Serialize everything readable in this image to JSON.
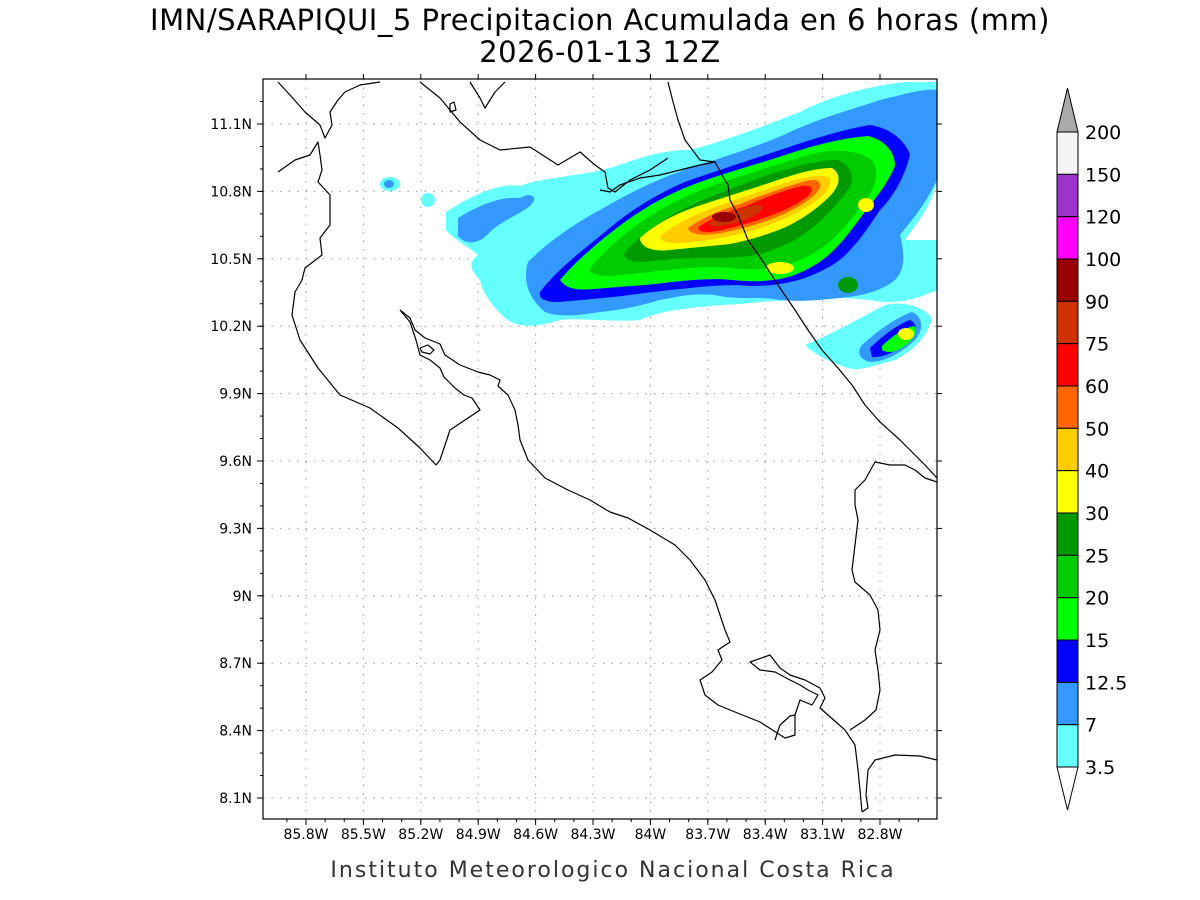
{
  "title": {
    "line1": "IMN/SARAPIQUI_5 Precipitacion Acumulada en 6 horas (mm)",
    "line2": "2026-01-13 12Z"
  },
  "footer": "Instituto Meteorologico Nacional Costa Rica",
  "map": {
    "lon_range": [
      -86.05,
      -82.55
    ],
    "lat_range": [
      8.0,
      11.3
    ],
    "lon_ticks": [
      "85.8W",
      "85.5W",
      "85.2W",
      "84.9W",
      "84.6W",
      "84.3W",
      "84W",
      "83.7W",
      "83.4W",
      "83.1W",
      "82.8W"
    ],
    "lat_ticks": [
      "11.1N",
      "10.8N",
      "10.5N",
      "10.2N",
      "9.9N",
      "9.6N",
      "9.3N",
      "9N",
      "8.7N",
      "8.4N",
      "8.1N"
    ],
    "gridlines": "dotted",
    "precip_region": "Caribbean slope, northeast of Costa Rica"
  },
  "colorbar": {
    "labels": [
      "3.5",
      "7",
      "12.5",
      "15",
      "20",
      "25",
      "30",
      "40",
      "50",
      "60",
      "75",
      "90",
      "100",
      "120",
      "150",
      "200"
    ],
    "colors": [
      "#66ffff",
      "#3399ff",
      "#0000ff",
      "#00ff00",
      "#00cc00",
      "#009900",
      "#ffff00",
      "#ffcc00",
      "#ff6600",
      "#ff0000",
      "#cc3300",
      "#990000",
      "#ff00ff",
      "#9933cc",
      "#f4f4f4",
      "#aaaaaa"
    ],
    "lower_triangle_color": "#ffffff",
    "upper_triangle_color": "#aaaaaa",
    "box_fill_colors": [
      "#66ffff",
      "#3399ff",
      "#0000ff",
      "#00ff00",
      "#00cc00",
      "#009900",
      "#ffff00",
      "#ffcc00",
      "#ff6600",
      "#ff0000",
      "#cc3300",
      "#990000",
      "#ff00ff",
      "#9933cc",
      "#f4f4f4"
    ]
  }
}
